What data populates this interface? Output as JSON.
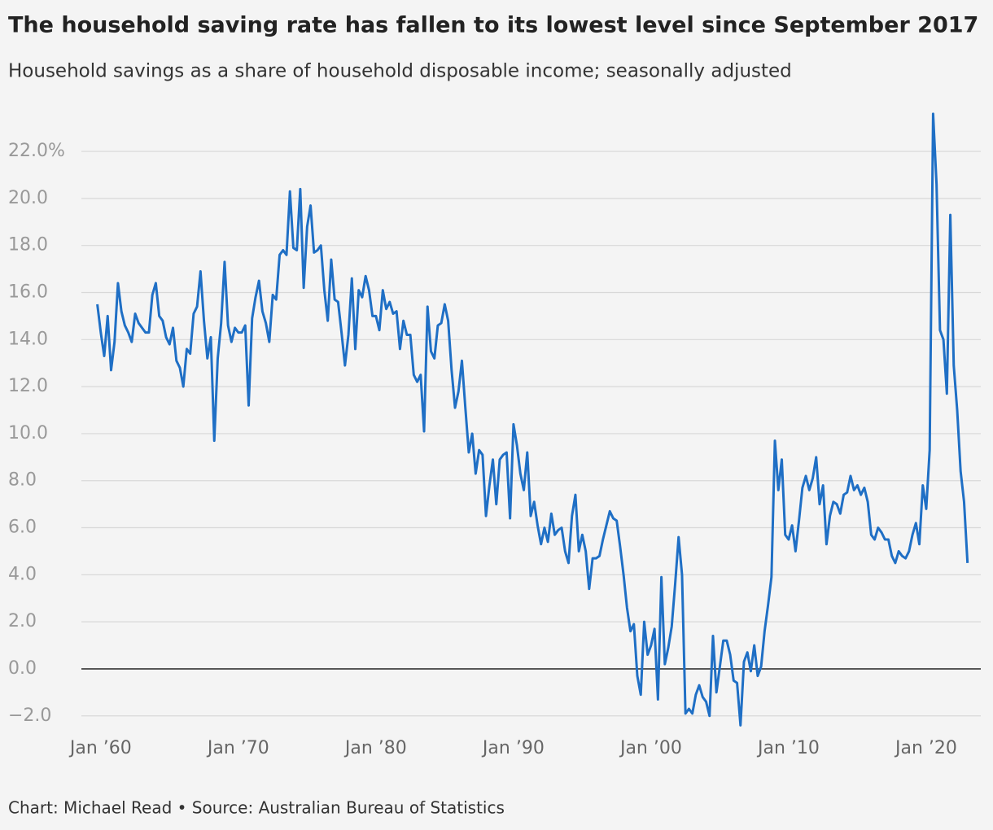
{
  "chart_data": {
    "type": "line",
    "title": "The household saving rate has fallen to its lowest level since September 2017",
    "subtitle": "Household savings as a share of household disposable income; seasonally adjusted",
    "source": "Chart: Michael Read • Source: Australian Bureau of Statistics",
    "color": "#1f6fc5",
    "grid": true,
    "xlim": [
      1958,
      2023.67
    ],
    "ylim": [
      -2.7,
      23.94
    ],
    "xticks": [
      {
        "value": 1960,
        "label": "Jan ’60"
      },
      {
        "value": 1970,
        "label": "Jan ’70"
      },
      {
        "value": 1980,
        "label": "Jan ’80"
      },
      {
        "value": 1990,
        "label": "Jan ’90"
      },
      {
        "value": 2000,
        "label": "Jan ’00"
      },
      {
        "value": 2010,
        "label": "Jan ’10"
      },
      {
        "value": 2020,
        "label": "Jan ’20"
      }
    ],
    "yticks": [
      {
        "value": -2,
        "label": "−2.0"
      },
      {
        "value": 0,
        "label": "0.0"
      },
      {
        "value": 2,
        "label": "2.0"
      },
      {
        "value": 4,
        "label": "4.0"
      },
      {
        "value": 6,
        "label": "6.0"
      },
      {
        "value": 8,
        "label": "8.0"
      },
      {
        "value": 10,
        "label": "10.0"
      },
      {
        "value": 12,
        "label": "12.0"
      },
      {
        "value": 14,
        "label": "14.0"
      },
      {
        "value": 16,
        "label": "16.0"
      },
      {
        "value": 18,
        "label": "18.0"
      },
      {
        "value": 20,
        "label": "20.0"
      },
      {
        "value": 22,
        "label": "22.0%"
      }
    ],
    "x": [
      1959.75,
      1960,
      1960.25,
      1960.5,
      1960.75,
      1961,
      1961.25,
      1961.5,
      1961.75,
      1962,
      1962.25,
      1962.5,
      1962.75,
      1963,
      1963.25,
      1963.5,
      1963.75,
      1964,
      1964.25,
      1964.5,
      1964.75,
      1965,
      1965.25,
      1965.5,
      1965.75,
      1966,
      1966.25,
      1966.5,
      1966.75,
      1967,
      1967.25,
      1967.5,
      1967.75,
      1968,
      1968.25,
      1968.5,
      1968.75,
      1969,
      1969.25,
      1969.5,
      1969.75,
      1970,
      1970.25,
      1970.5,
      1970.75,
      1971,
      1971.25,
      1971.5,
      1971.75,
      1972,
      1972.25,
      1972.5,
      1972.75,
      1973,
      1973.25,
      1973.5,
      1973.75,
      1974,
      1974.25,
      1974.5,
      1974.75,
      1975,
      1975.25,
      1975.5,
      1975.75,
      1976,
      1976.25,
      1976.5,
      1976.75,
      1977,
      1977.25,
      1977.5,
      1977.75,
      1978,
      1978.25,
      1978.5,
      1978.75,
      1979,
      1979.25,
      1979.5,
      1979.75,
      1980,
      1980.25,
      1980.5,
      1980.75,
      1981,
      1981.25,
      1981.5,
      1981.75,
      1982,
      1982.25,
      1982.5,
      1982.75,
      1983,
      1983.25,
      1983.5,
      1983.75,
      1984,
      1984.25,
      1984.5,
      1984.75,
      1985,
      1985.25,
      1985.5,
      1985.75,
      1986,
      1986.25,
      1986.5,
      1986.75,
      1987,
      1987.25,
      1987.5,
      1987.75,
      1988,
      1988.25,
      1988.5,
      1988.75,
      1989,
      1989.25,
      1989.5,
      1989.75,
      1990,
      1990.25,
      1990.5,
      1990.75,
      1991,
      1991.25,
      1991.5,
      1991.75,
      1992,
      1992.25,
      1992.5,
      1992.75,
      1993,
      1993.25,
      1993.5,
      1993.75,
      1994,
      1994.25,
      1994.5,
      1994.75,
      1995,
      1995.25,
      1995.5,
      1995.75,
      1996,
      1996.25,
      1996.5,
      1996.75,
      1997,
      1997.25,
      1997.5,
      1997.75,
      1998,
      1998.25,
      1998.5,
      1998.75,
      1999,
      1999.25,
      1999.5,
      1999.75,
      2000,
      2000.25,
      2000.5,
      2000.75,
      2001,
      2001.25,
      2001.5,
      2001.75,
      2002,
      2002.25,
      2002.5,
      2002.75,
      2003,
      2003.25,
      2003.5,
      2003.75,
      2004,
      2004.25,
      2004.5,
      2004.75,
      2005,
      2005.25,
      2005.5,
      2005.75,
      2006,
      2006.25,
      2006.5,
      2006.75,
      2007,
      2007.25,
      2007.5,
      2007.75,
      2008,
      2008.25,
      2008.5,
      2008.75,
      2009,
      2009.25,
      2009.5,
      2009.75,
      2010,
      2010.25,
      2010.5,
      2010.75,
      2011,
      2011.25,
      2011.5,
      2011.75,
      2012,
      2012.25,
      2012.5,
      2012.75,
      2013,
      2013.25,
      2013.5,
      2013.75,
      2014,
      2014.25,
      2014.5,
      2014.75,
      2015,
      2015.25,
      2015.5,
      2015.75,
      2016,
      2016.25,
      2016.5,
      2016.75,
      2017,
      2017.25,
      2017.5,
      2017.75,
      2018,
      2018.25,
      2018.5,
      2018.75,
      2019,
      2019.25,
      2019.5,
      2019.75,
      2020,
      2020.25,
      2020.5,
      2020.75,
      2021,
      2021.25,
      2021.5,
      2021.75,
      2022,
      2022.25,
      2022.5,
      2022.75,
      2023
    ],
    "values": [
      15.5,
      14.3,
      13.3,
      15.0,
      12.7,
      13.9,
      16.4,
      15.2,
      14.6,
      14.3,
      13.9,
      15.1,
      14.7,
      14.5,
      14.3,
      14.3,
      15.9,
      16.4,
      15.0,
      14.8,
      14.1,
      13.8,
      14.5,
      13.1,
      12.8,
      12.0,
      13.6,
      13.4,
      15.1,
      15.4,
      16.9,
      14.8,
      13.2,
      14.1,
      9.7,
      13.2,
      14.7,
      17.3,
      14.6,
      13.9,
      14.5,
      14.3,
      14.3,
      14.6,
      11.2,
      14.9,
      15.8,
      16.5,
      15.2,
      14.7,
      13.9,
      15.9,
      15.7,
      17.6,
      17.8,
      17.6,
      20.3,
      17.9,
      17.8,
      20.4,
      16.2,
      18.8,
      19.7,
      17.7,
      17.8,
      18.0,
      16.1,
      14.8,
      17.4,
      15.7,
      15.6,
      14.3,
      12.9,
      14.2,
      16.6,
      13.6,
      16.1,
      15.8,
      16.7,
      16.1,
      15.0,
      15.0,
      14.4,
      16.1,
      15.3,
      15.6,
      15.1,
      15.2,
      13.6,
      14.8,
      14.2,
      14.2,
      12.5,
      12.2,
      12.5,
      10.1,
      15.4,
      13.5,
      13.2,
      14.6,
      14.7,
      15.5,
      14.8,
      12.7,
      11.1,
      11.8,
      13.1,
      11.1,
      9.2,
      10.0,
      8.3,
      9.3,
      9.1,
      6.5,
      7.8,
      8.9,
      7.0,
      8.9,
      9.1,
      9.2,
      6.4,
      10.4,
      9.5,
      8.3,
      7.6,
      9.2,
      6.5,
      7.1,
      6.1,
      5.3,
      6.0,
      5.4,
      6.6,
      5.7,
      5.9,
      6.0,
      5.0,
      4.5,
      6.5,
      7.4,
      5.0,
      5.7,
      5.0,
      3.4,
      4.7,
      4.7,
      4.8,
      5.5,
      6.1,
      6.7,
      6.4,
      6.3,
      5.2,
      4.0,
      2.6,
      1.6,
      1.9,
      -0.3,
      -1.1,
      2.0,
      0.6,
      1.0,
      1.7,
      -1.3,
      3.9,
      0.2,
      0.9,
      1.8,
      3.6,
      5.6,
      4.0,
      -1.9,
      -1.7,
      -1.9,
      -1.1,
      -0.7,
      -1.2,
      -1.4,
      -2.0,
      1.4,
      -1.0,
      0.1,
      1.2,
      1.2,
      0.6,
      -0.5,
      -0.6,
      -2.4,
      0.3,
      0.7,
      -0.1,
      1.0,
      -0.3,
      0.1,
      1.6,
      2.7,
      3.9,
      9.7,
      7.6,
      8.9,
      5.7,
      5.5,
      6.1,
      5.0,
      6.3,
      7.7,
      8.2,
      7.6,
      8.1,
      9.0,
      7.0,
      7.8,
      5.3,
      6.5,
      7.1,
      7.0,
      6.6,
      7.4,
      7.5,
      8.2,
      7.6,
      7.8,
      7.4,
      7.7,
      7.1,
      5.7,
      5.5,
      6.0,
      5.8,
      5.5,
      5.5,
      4.8,
      4.5,
      5.0,
      4.8,
      4.7,
      5.0,
      5.7,
      6.2,
      5.3,
      7.8,
      6.8,
      9.3,
      23.6,
      20.6,
      14.4,
      14.0,
      11.7,
      19.3,
      12.9,
      11.0,
      8.4,
      7.1,
      4.5
    ]
  }
}
